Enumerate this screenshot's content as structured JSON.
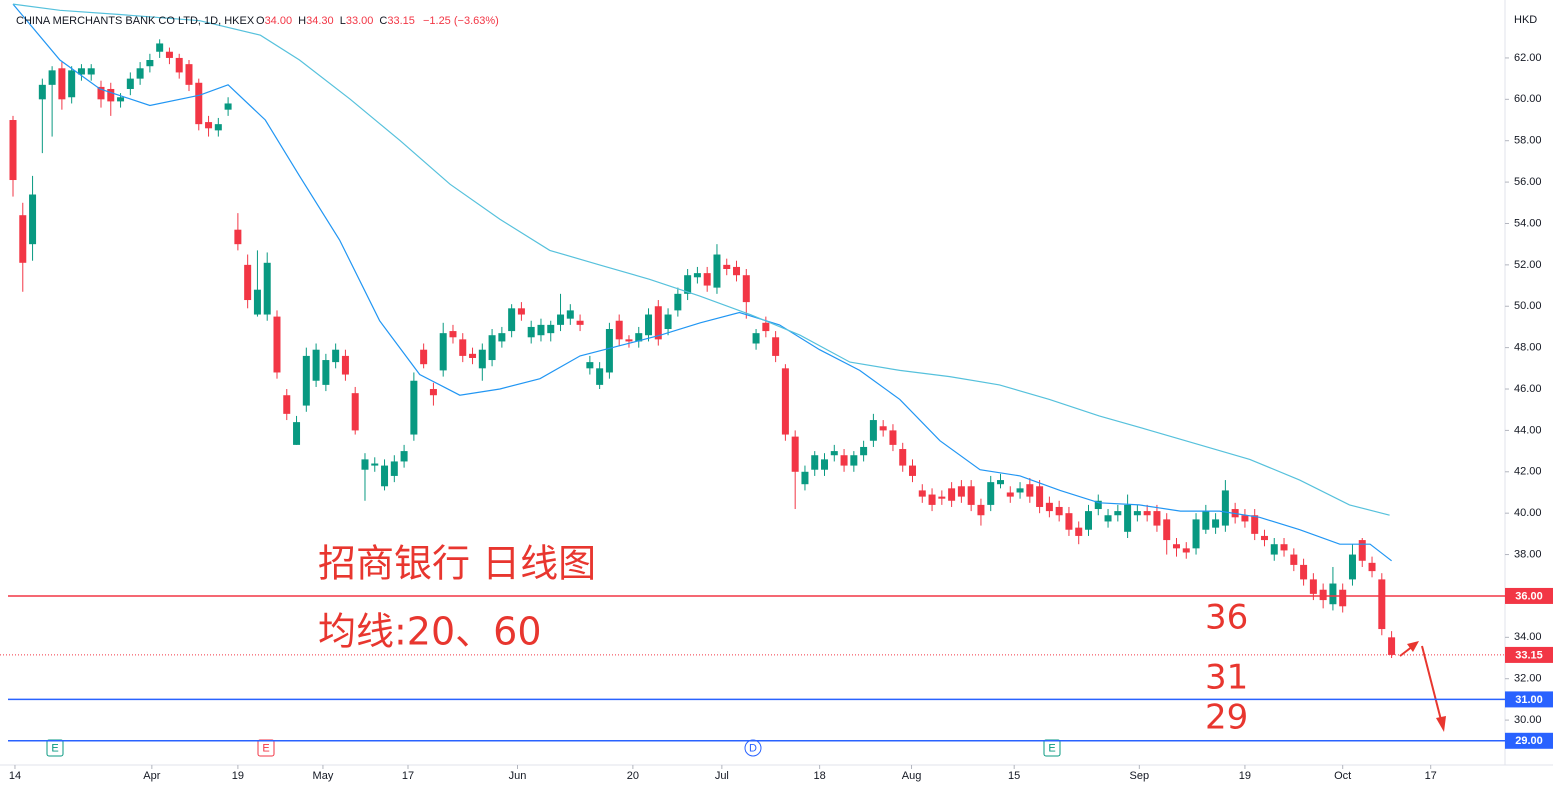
{
  "chart_data": {
    "type": "candlestick",
    "title": "CHINA MERCHANTS BANK CO LTD, 1D, HKEX",
    "legend_values": [
      {
        "label": "O",
        "value": "34.00"
      },
      {
        "label": "H",
        "value": "34.30"
      },
      {
        "label": "L",
        "value": "33.00"
      },
      {
        "label": "C",
        "value": "33.15"
      }
    ],
    "change": "−1.25 (−3.63%)",
    "y_axis_label": "HKD",
    "up_color": "#089981",
    "down_color": "#f23645",
    "xlim": [
      -1.33,
      152.6
    ],
    "xticks": [
      {
        "value": 0.2,
        "label": "14"
      },
      {
        "value": 14.2,
        "label": "Apr"
      },
      {
        "value": 23,
        "label": "19"
      },
      {
        "value": 31.7,
        "label": "May"
      },
      {
        "value": 40.4,
        "label": "17"
      },
      {
        "value": 51.6,
        "label": "Jun"
      },
      {
        "value": 63.4,
        "label": "20"
      },
      {
        "value": 72.5,
        "label": "Jul"
      },
      {
        "value": 82.5,
        "label": "18"
      },
      {
        "value": 91.9,
        "label": "Aug"
      },
      {
        "value": 102.4,
        "label": "15"
      },
      {
        "value": 115.2,
        "label": "Sep"
      },
      {
        "value": 126,
        "label": "19"
      },
      {
        "value": 136,
        "label": "Oct"
      },
      {
        "value": 145,
        "label": "17"
      }
    ],
    "ylim": [
      27.83,
      64.8
    ],
    "yticks": [
      {
        "value": 30,
        "label": "30.00"
      },
      {
        "value": 32,
        "label": "32.00"
      },
      {
        "value": 34,
        "label": "34.00"
      },
      {
        "value": 38,
        "label": "38.00"
      },
      {
        "value": 40,
        "label": "40.00"
      },
      {
        "value": 42,
        "label": "42.00"
      },
      {
        "value": 44,
        "label": "44.00"
      },
      {
        "value": 46,
        "label": "46.00"
      },
      {
        "value": 48,
        "label": "48.00"
      },
      {
        "value": 50,
        "label": "50.00"
      },
      {
        "value": 52,
        "label": "52.00"
      },
      {
        "value": 54,
        "label": "54.00"
      },
      {
        "value": 56,
        "label": "56.00"
      },
      {
        "value": 58,
        "label": "58.00"
      },
      {
        "value": 60,
        "label": "60.00"
      },
      {
        "value": 62,
        "label": "62.00"
      }
    ],
    "open": [
      59.0,
      54.4,
      53.0,
      60.0,
      60.7,
      61.5,
      60.1,
      61.2,
      61.2,
      60.6,
      60.5,
      59.9,
      60.5,
      61.0,
      61.6,
      62.3,
      62.3,
      62.0,
      61.7,
      60.8,
      58.9,
      58.5,
      59.5,
      53.7,
      52.0,
      49.6,
      49.6,
      49.5,
      45.7,
      43.3,
      45.2,
      46.4,
      46.2,
      47.3,
      47.6,
      45.8,
      42.1,
      42.3,
      41.3,
      41.8,
      42.5,
      43.8,
      47.9,
      46.0,
      46.9,
      48.8,
      48.4,
      47.7,
      47.0,
      47.4,
      48.3,
      48.8,
      49.9,
      48.5,
      48.6,
      48.7,
      49.1,
      49.4,
      49.3,
      47.0,
      46.2,
      46.8,
      49.3,
      48.4,
      48.3,
      48.6,
      50.0,
      48.9,
      49.8,
      50.6,
      51.4,
      51.6,
      50.9,
      52.0,
      51.9,
      51.5,
      48.2,
      49.2,
      48.5,
      47.0,
      43.7,
      41.4,
      42.1,
      42.1,
      42.8,
      42.8,
      42.3,
      42.8,
      43.5,
      44.2,
      44.0,
      43.1,
      42.3,
      41.1,
      40.9,
      40.8,
      41.2,
      41.3,
      41.3,
      40.4,
      40.4,
      41.4,
      41.0,
      41.0,
      41.4,
      41.3,
      40.5,
      40.3,
      40.0,
      39.3,
      39.2,
      40.2,
      39.6,
      39.9,
      39.1,
      39.9,
      40.1,
      40.1,
      39.7,
      38.5,
      38.3,
      38.3,
      39.2,
      39.3,
      39.4,
      40.2,
      39.9,
      39.9,
      38.9,
      38.0,
      38.5,
      38.0,
      37.5,
      36.8,
      36.3,
      35.6,
      36.3,
      36.8,
      38.7,
      37.6,
      36.8,
      34.0
    ],
    "high": [
      59.2,
      55.0,
      56.3,
      61.0,
      61.6,
      61.8,
      61.6,
      61.7,
      61.7,
      60.9,
      60.8,
      60.3,
      61.3,
      61.8,
      62.2,
      62.9,
      62.5,
      62.2,
      61.9,
      61.0,
      59.2,
      59.1,
      60.1,
      54.5,
      52.5,
      52.7,
      52.6,
      49.8,
      46.0,
      44.7,
      48.0,
      48.2,
      47.7,
      48.2,
      47.9,
      46.1,
      42.9,
      42.7,
      42.6,
      42.8,
      43.3,
      46.8,
      48.2,
      46.3,
      49.2,
      49.1,
      48.7,
      48.0,
      48.2,
      48.9,
      49.0,
      50.1,
      50.2,
      49.3,
      49.4,
      49.3,
      50.6,
      50.1,
      49.6,
      47.6,
      47.3,
      49.2,
      49.6,
      48.6,
      49.0,
      49.9,
      50.3,
      49.9,
      50.9,
      51.8,
      51.9,
      51.9,
      53.0,
      52.3,
      52.2,
      51.8,
      48.9,
      49.5,
      48.8,
      47.2,
      44.0,
      42.3,
      43.0,
      42.9,
      43.3,
      43.1,
      43.0,
      43.5,
      44.8,
      44.5,
      44.3,
      43.4,
      42.6,
      41.4,
      41.2,
      41.1,
      41.5,
      41.6,
      41.6,
      40.7,
      41.8,
      41.9,
      41.3,
      41.5,
      41.7,
      41.6,
      40.8,
      40.6,
      40.3,
      39.6,
      40.4,
      40.9,
      40.2,
      40.4,
      40.9,
      40.4,
      40.4,
      40.4,
      40.0,
      38.8,
      38.6,
      40.0,
      40.4,
      40.0,
      41.6,
      40.5,
      40.2,
      40.2,
      39.2,
      38.8,
      38.8,
      38.3,
      37.8,
      37.1,
      36.6,
      37.4,
      36.6,
      38.5,
      38.8,
      37.9,
      37.1,
      34.3
    ],
    "low": [
      55.3,
      50.7,
      52.2,
      57.4,
      58.2,
      59.5,
      59.8,
      60.9,
      60.9,
      59.6,
      59.2,
      59.6,
      60.2,
      60.7,
      61.3,
      62.0,
      61.7,
      61.0,
      60.4,
      58.5,
      58.2,
      58.2,
      59.2,
      52.7,
      49.9,
      49.5,
      49.3,
      46.5,
      44.5,
      43.3,
      44.9,
      46.1,
      45.9,
      47.0,
      46.4,
      43.8,
      40.6,
      42.0,
      41.1,
      41.5,
      42.2,
      43.5,
      47.0,
      45.2,
      46.6,
      48.2,
      47.3,
      47.2,
      46.4,
      47.1,
      48.0,
      48.5,
      49.3,
      48.2,
      48.3,
      48.3,
      48.8,
      49.1,
      48.8,
      46.7,
      46.0,
      46.5,
      48.1,
      48.0,
      48.0,
      48.3,
      48.1,
      48.6,
      49.5,
      50.3,
      51.1,
      50.7,
      50.6,
      51.5,
      51.2,
      49.4,
      47.9,
      48.5,
      47.3,
      43.5,
      40.2,
      41.1,
      41.8,
      41.8,
      42.5,
      42.0,
      42.0,
      42.5,
      43.2,
      43.7,
      43.0,
      42.0,
      41.5,
      40.5,
      40.1,
      40.4,
      40.3,
      40.5,
      40.1,
      39.4,
      40.1,
      41.2,
      40.5,
      40.7,
      40.5,
      40.0,
      39.8,
      39.6,
      38.9,
      38.5,
      38.9,
      39.9,
      39.3,
      39.6,
      38.8,
      39.6,
      39.6,
      39.1,
      38.0,
      37.9,
      37.8,
      38.0,
      39.0,
      39.0,
      39.1,
      39.5,
      39.3,
      38.7,
      38.4,
      37.7,
      37.9,
      37.2,
      36.5,
      35.8,
      35.4,
      35.3,
      35.2,
      36.5,
      37.4,
      36.9,
      34.1,
      33.0
    ],
    "close": [
      56.1,
      52.1,
      55.4,
      60.7,
      61.4,
      60.0,
      61.4,
      61.5,
      61.5,
      60.0,
      59.9,
      60.1,
      61.0,
      61.5,
      61.9,
      62.7,
      62.0,
      61.3,
      60.7,
      58.8,
      58.6,
      58.8,
      59.8,
      53.0,
      50.3,
      50.8,
      52.1,
      46.8,
      44.8,
      44.4,
      47.6,
      47.9,
      47.4,
      47.9,
      46.7,
      44.0,
      42.6,
      42.4,
      42.3,
      42.5,
      43.0,
      46.4,
      47.2,
      45.7,
      48.7,
      48.5,
      47.6,
      47.5,
      47.9,
      48.6,
      48.7,
      49.9,
      49.6,
      49.0,
      49.1,
      49.1,
      49.6,
      49.8,
      49.1,
      47.3,
      47.0,
      48.9,
      48.4,
      48.3,
      48.7,
      49.6,
      48.4,
      49.6,
      50.6,
      51.5,
      51.6,
      51.0,
      52.5,
      51.8,
      51.5,
      50.2,
      48.7,
      48.8,
      47.6,
      43.8,
      42.0,
      42.0,
      42.8,
      42.6,
      43.0,
      42.3,
      42.8,
      43.2,
      44.5,
      44.0,
      43.3,
      42.3,
      41.8,
      40.8,
      40.4,
      40.7,
      40.6,
      40.8,
      40.4,
      39.9,
      41.5,
      41.6,
      40.8,
      41.2,
      40.8,
      40.3,
      40.1,
      39.9,
      39.2,
      38.9,
      40.1,
      40.6,
      39.9,
      40.1,
      40.4,
      40.1,
      39.9,
      39.4,
      38.7,
      38.3,
      38.1,
      39.7,
      40.1,
      39.7,
      41.1,
      39.8,
      39.6,
      39.0,
      38.7,
      38.5,
      38.2,
      37.5,
      36.8,
      36.1,
      35.8,
      36.6,
      35.5,
      38.0,
      37.7,
      37.2,
      34.4,
      33.15
    ],
    "lines": [
      {
        "color": "#2196f3",
        "x": [
          0,
          4.8,
          8.9,
          14,
          19.1,
          22,
          25.8,
          29.3,
          33.4,
          37.5,
          41.6,
          45.7,
          49.8,
          53.9,
          58,
          62.1,
          66.2,
          70.3,
          74.3,
          78.4,
          82.5,
          86.6,
          90.7,
          94.8,
          98.9,
          103,
          107.1,
          111.1,
          115.2,
          119.4,
          123.4,
          127.5,
          131.6,
          135.7,
          138.8,
          141
        ],
        "values": [
          64.6,
          61.9,
          60.5,
          59.7,
          60.2,
          60.7,
          59.0,
          56.3,
          53.2,
          49.3,
          46.7,
          45.7,
          46.0,
          46.5,
          47.6,
          48.1,
          48.6,
          49.2,
          49.7,
          49.1,
          47.9,
          46.9,
          45.5,
          43.5,
          42.1,
          41.8,
          41.1,
          40.5,
          40.4,
          40.1,
          40.1,
          39.8,
          39.2,
          38.5,
          38.5,
          37.7
        ]
      },
      {
        "color": "#56c1dc",
        "x": [
          0,
          4.8,
          10.9,
          19.1,
          25.3,
          29.3,
          34.5,
          39.6,
          44.7,
          49.8,
          54.9,
          60,
          65.1,
          70.2,
          75.4,
          80.5,
          85.6,
          90.7,
          95.8,
          100.9,
          106,
          111.1,
          116.3,
          121.4,
          126.5,
          131.6,
          136.7,
          140.8
        ],
        "values": [
          64.6,
          64.3,
          64.1,
          63.8,
          63.1,
          61.9,
          60.0,
          58.0,
          55.9,
          54.2,
          52.7,
          52.0,
          51.3,
          50.5,
          49.6,
          48.6,
          47.3,
          46.9,
          46.6,
          46.2,
          45.5,
          44.7,
          44.0,
          43.3,
          42.6,
          41.6,
          40.4,
          39.9
        ]
      }
    ],
    "price_lines": [
      {
        "value": 36,
        "label": "36.00",
        "color": "#f23645"
      },
      {
        "value": 31,
        "label": "31.00",
        "color": "#2962ff"
      },
      {
        "value": 29,
        "label": "29.00",
        "color": "#2962ff"
      }
    ],
    "last_price": {
      "value": 33.15,
      "label": "33.15",
      "color": "#f23645"
    },
    "annotations": [
      "招商银行 日线图",
      "均线:20、60",
      "36",
      "31",
      "29"
    ],
    "events": [
      "E",
      "E",
      "D",
      "E"
    ]
  }
}
